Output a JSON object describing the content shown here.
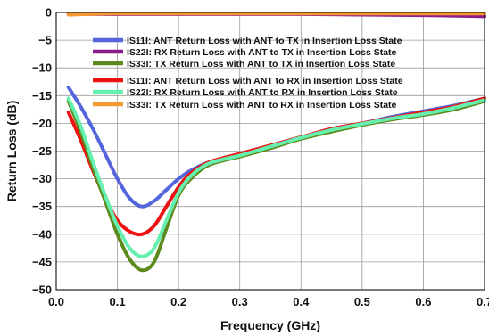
{
  "chart_data": {
    "type": "line",
    "xlabel": "Frequency (GHz)",
    "ylabel": "Return Loss (dB)",
    "xlim": [
      0,
      0.7
    ],
    "ylim": [
      -50,
      0
    ],
    "xticks": [
      0.0,
      0.1,
      0.2,
      0.3,
      0.4,
      0.5,
      0.6,
      0.7
    ],
    "xtick_labels": [
      "0.0",
      "0.1",
      "0.2",
      "0.3",
      "0.4",
      "0.5",
      "0.6",
      "0.7"
    ],
    "yticks": [
      0,
      -5,
      -10,
      -15,
      -20,
      -25,
      -30,
      -35,
      -40,
      -45,
      -50
    ],
    "ytick_labels": [
      "0",
      "−5",
      "−10",
      "−15",
      "−20",
      "−25",
      "−30",
      "−35",
      "−40",
      "−45",
      "−50"
    ],
    "grid": true,
    "legend_position": "top",
    "series": [
      {
        "name": "IS11I: ANT Return Loss with ANT to TX in Insertion Loss State",
        "color": "#5566dd",
        "x": [
          0.02,
          0.04,
          0.06,
          0.08,
          0.1,
          0.12,
          0.14,
          0.16,
          0.18,
          0.2,
          0.22,
          0.25,
          0.3,
          0.35,
          0.4,
          0.45,
          0.5,
          0.55,
          0.6,
          0.65,
          0.7
        ],
        "y": [
          -13.5,
          -17,
          -21,
          -25.5,
          -30,
          -33.5,
          -35,
          -34,
          -32,
          -30,
          -28.5,
          -27,
          -25.5,
          -24,
          -22.5,
          -21,
          -20,
          -18.8,
          -17.8,
          -16.8,
          -15.5
        ]
      },
      {
        "name": "IS22I: RX Return Loss with ANT to TX in Insertion Loss State",
        "color": "#8b1a8b",
        "x": [
          0.02,
          0.1,
          0.2,
          0.3,
          0.4,
          0.5,
          0.6,
          0.7
        ],
        "y": [
          -0.3,
          -0.3,
          -0.3,
          -0.3,
          -0.3,
          -0.4,
          -0.5,
          -0.7
        ]
      },
      {
        "name": "IS33I: TX Return Loss with ANT to TX in Insertion Loss State",
        "color": "#5c8a1c",
        "x": [
          0.02,
          0.04,
          0.06,
          0.08,
          0.1,
          0.12,
          0.14,
          0.16,
          0.18,
          0.2,
          0.22,
          0.25,
          0.3,
          0.35,
          0.4,
          0.45,
          0.5,
          0.55,
          0.6,
          0.65,
          0.7
        ],
        "y": [
          -16,
          -21.5,
          -28,
          -34,
          -40,
          -44.5,
          -46.5,
          -45,
          -39,
          -33,
          -30,
          -27.5,
          -26,
          -24.5,
          -22.8,
          -21.5,
          -20.3,
          -19.3,
          -18.5,
          -17.5,
          -16
        ]
      },
      {
        "name": "IS11I: ANT Return Loss with ANT to RX in Insertion Loss State",
        "color": "#ee1111",
        "x": [
          0.02,
          0.04,
          0.06,
          0.08,
          0.1,
          0.12,
          0.14,
          0.16,
          0.18,
          0.2,
          0.22,
          0.25,
          0.3,
          0.35,
          0.4,
          0.45,
          0.5,
          0.55,
          0.6,
          0.65,
          0.7
        ],
        "y": [
          -18,
          -23,
          -28.5,
          -33.5,
          -37.5,
          -39.5,
          -40,
          -38.5,
          -35,
          -31.5,
          -29,
          -27,
          -25.5,
          -24,
          -22.5,
          -21,
          -20,
          -19,
          -18,
          -17,
          -15.5
        ]
      },
      {
        "name": "IS22I: RX Return Loss with ANT to RX in Insertion Loss State",
        "color": "#66f0b0",
        "x": [
          0.02,
          0.04,
          0.06,
          0.08,
          0.1,
          0.12,
          0.14,
          0.16,
          0.18,
          0.2,
          0.22,
          0.25,
          0.3,
          0.35,
          0.4,
          0.45,
          0.5,
          0.55,
          0.6,
          0.65,
          0.7
        ],
        "y": [
          -15.5,
          -20.5,
          -27,
          -33,
          -38.5,
          -42.5,
          -44,
          -42.5,
          -37.5,
          -32.5,
          -29.5,
          -27.2,
          -25.8,
          -24.2,
          -22.6,
          -21.2,
          -20.1,
          -19.1,
          -18.3,
          -17.2,
          -15.8
        ]
      },
      {
        "name": "IS33I: TX Return Loss with ANT to RX in Insertion Loss State",
        "color": "#f59a33",
        "x": [
          0.02,
          0.1,
          0.2,
          0.3,
          0.4,
          0.5,
          0.6,
          0.7
        ],
        "y": [
          -0.4,
          -0.2,
          -0.2,
          -0.2,
          -0.2,
          -0.2,
          -0.2,
          -0.2
        ]
      }
    ]
  }
}
